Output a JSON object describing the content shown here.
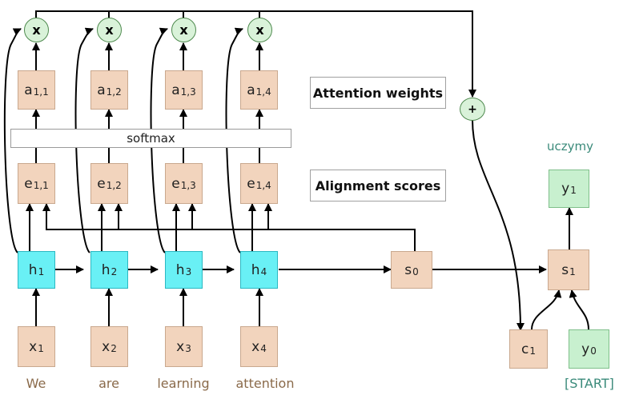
{
  "inputs": [
    {
      "label": "x",
      "sub": "1",
      "word": "We"
    },
    {
      "label": "x",
      "sub": "2",
      "word": "are"
    },
    {
      "label": "x",
      "sub": "3",
      "word": "learning"
    },
    {
      "label": "x",
      "sub": "4",
      "word": "attention"
    }
  ],
  "hidden": [
    {
      "label": "h",
      "sub": "1"
    },
    {
      "label": "h",
      "sub": "2"
    },
    {
      "label": "h",
      "sub": "3"
    },
    {
      "label": "h",
      "sub": "4"
    }
  ],
  "scores": [
    {
      "label": "e",
      "sub": "1,1"
    },
    {
      "label": "e",
      "sub": "1,2"
    },
    {
      "label": "e",
      "sub": "1,3"
    },
    {
      "label": "e",
      "sub": "1,4"
    }
  ],
  "weights": [
    {
      "label": "a",
      "sub": "1,1"
    },
    {
      "label": "a",
      "sub": "1,2"
    },
    {
      "label": "a",
      "sub": "1,3"
    },
    {
      "label": "a",
      "sub": "1,4"
    }
  ],
  "multiply_symbol": "x",
  "sum_symbol": "+",
  "softmax_label": "softmax",
  "attention_weights_label": "Attention weights",
  "alignment_scores_label": "Alignment scores",
  "s0": {
    "label": "s",
    "sub": "0"
  },
  "s1": {
    "label": "s",
    "sub": "1"
  },
  "c1": {
    "label": "c",
    "sub": "1"
  },
  "y1": {
    "label": "y",
    "sub": "1"
  },
  "y0": {
    "label": "y",
    "sub": "0"
  },
  "output_word": "uczymy",
  "start_token": "[START]"
}
